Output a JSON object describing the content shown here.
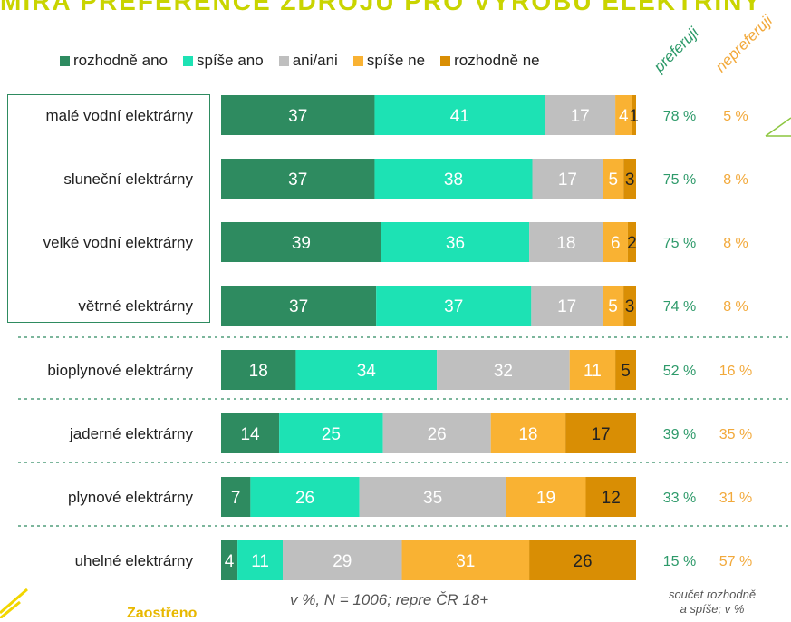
{
  "header": {
    "title": "MÍRA PREFERENCE ZDROJŮ PRO VÝROBU ELEKTŘINY"
  },
  "legend": {
    "items": [
      {
        "label": "rozhodně ano",
        "color": "#2e8b60"
      },
      {
        "label": "spíše ano",
        "color": "#1de2b4"
      },
      {
        "label": "ani/ani",
        "color": "#bfbfbf"
      },
      {
        "label": "spíše ne",
        "color": "#f9b233"
      },
      {
        "label": "rozhodně ne",
        "color": "#d98e04"
      }
    ]
  },
  "columns": {
    "preferred": "preferuji",
    "not_preferred": "nepreferuji"
  },
  "colors": {
    "preferred": "#2e9a6a",
    "not_preferred": "#f2a93b",
    "box": "#2e8b60",
    "divider": "#2e8b60"
  },
  "chart_data": {
    "type": "bar",
    "orientation": "horizontal",
    "stacked": true,
    "unit": "%",
    "categories": [
      "malé vodní elektrárny",
      "sluneční elektrárny",
      "velké vodní elektrárny",
      "větrné elektrárny",
      "bioplynové elektrárny",
      "jaderné elektrárny",
      "plynové elektrárny",
      "uhelné elektrárny"
    ],
    "series": [
      {
        "name": "rozhodně ano",
        "color": "#2e8b60",
        "values": [
          37,
          37,
          39,
          37,
          18,
          14,
          7,
          4
        ]
      },
      {
        "name": "spíše ano",
        "color": "#1de2b4",
        "values": [
          41,
          38,
          36,
          37,
          34,
          25,
          26,
          11
        ]
      },
      {
        "name": "ani/ani",
        "color": "#bfbfbf",
        "values": [
          17,
          17,
          18,
          17,
          32,
          26,
          35,
          29
        ]
      },
      {
        "name": "spíše ne",
        "color": "#f9b233",
        "values": [
          4,
          5,
          6,
          5,
          11,
          18,
          19,
          31
        ]
      },
      {
        "name": "rozhodně ne",
        "color": "#d98e04",
        "values": [
          1,
          3,
          2,
          3,
          5,
          17,
          12,
          26
        ]
      }
    ],
    "preferred_labels": [
      "78 %",
      "75 %",
      "75 %",
      "74 %",
      "52 %",
      "39 %",
      "33 %",
      "15 %"
    ],
    "not_preferred_labels": [
      "5 %",
      "8 %",
      "8 %",
      "8 %",
      "16 %",
      "35 %",
      "31 %",
      "57 %"
    ],
    "legend_position": "top",
    "grid": false
  },
  "notes": {
    "sample": "v %, N = 1006; repre ČR 18+",
    "sum_line1": "součet rozhodně",
    "sum_line2": "a spíše; v %"
  },
  "logo": {
    "text": "Zaostřeno"
  }
}
